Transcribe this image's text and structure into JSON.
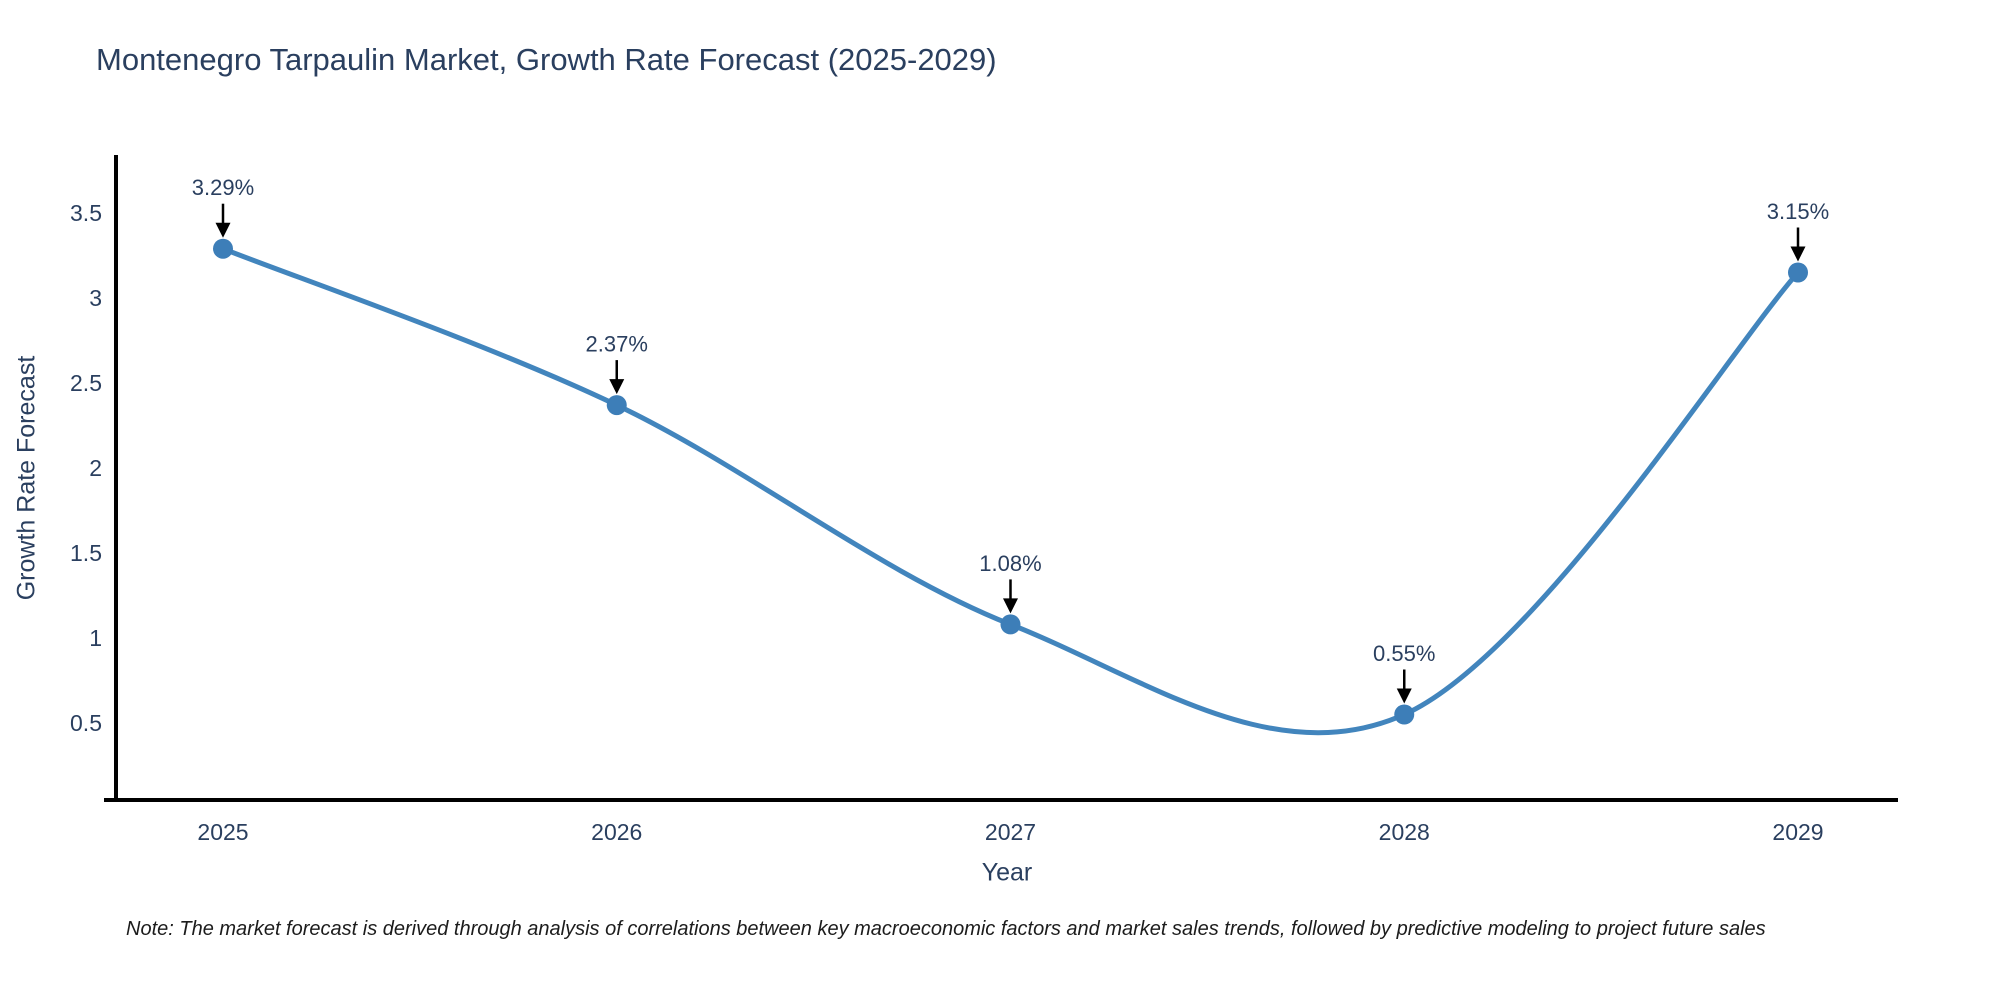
{
  "chart_data": {
    "type": "line",
    "title": "Montenegro Tarpaulin Market, Growth Rate Forecast (2025-2029)",
    "xlabel": "Year",
    "ylabel": "Growth Rate Forecast",
    "x": [
      2025,
      2026,
      2027,
      2028,
      2029
    ],
    "series": [
      {
        "name": "Growth Rate Forecast",
        "values": [
          3.29,
          2.37,
          1.08,
          0.55,
          3.15
        ]
      }
    ],
    "point_labels": [
      "3.29%",
      "2.37%",
      "1.08%",
      "0.55%",
      "3.15%"
    ],
    "xticklabels": [
      "2025",
      "2026",
      "2027",
      "2028",
      "2029"
    ],
    "yticks": [
      {
        "value": 0.5,
        "label": "0.5"
      },
      {
        "value": 1,
        "label": "1"
      },
      {
        "value": 1.5,
        "label": "1.5"
      },
      {
        "value": 2,
        "label": "2"
      },
      {
        "value": 2.5,
        "label": "2.5"
      },
      {
        "value": 3,
        "label": "3"
      },
      {
        "value": 3.5,
        "label": "3.5"
      }
    ],
    "ylim": [
      0.05,
      3.85
    ],
    "line_shape": "spline",
    "grid": false,
    "legend_position": "none",
    "colors": {
      "line": "#4285bd",
      "marker": "#3d7eb8",
      "arrow": "#000000",
      "text": "#2a3f5f",
      "axis": "#000000"
    }
  },
  "note": "Note: The market forecast is derived through analysis of correlations between key macroeconomic factors and market sales trends, followed by predictive modeling to project future sales"
}
